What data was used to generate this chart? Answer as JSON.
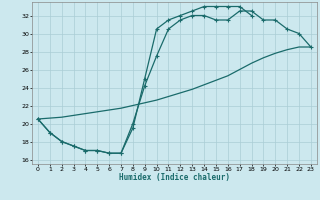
{
  "xlabel": "Humidex (Indice chaleur)",
  "background_color": "#cce8ee",
  "grid_color": "#aacdd5",
  "line_color": "#1a6b6b",
  "xlim": [
    -0.5,
    23.5
  ],
  "ylim": [
    15.5,
    33.5
  ],
  "xticks": [
    0,
    1,
    2,
    3,
    4,
    5,
    6,
    7,
    8,
    9,
    10,
    11,
    12,
    13,
    14,
    15,
    16,
    17,
    18,
    19,
    20,
    21,
    22,
    23
  ],
  "yticks": [
    16,
    18,
    20,
    22,
    24,
    26,
    28,
    30,
    32
  ],
  "line1_x": [
    0,
    1,
    2,
    3,
    4,
    5,
    6,
    7,
    8,
    9,
    10,
    11,
    12,
    13,
    14,
    15,
    16,
    17,
    18
  ],
  "line1_y": [
    20.5,
    19.0,
    18.0,
    17.5,
    17.0,
    17.0,
    16.7,
    16.7,
    19.5,
    25.0,
    30.5,
    31.5,
    32.0,
    32.5,
    33.0,
    33.0,
    33.0,
    33.0,
    32.0
  ],
  "line2_x": [
    0,
    1,
    2,
    3,
    4,
    5,
    6,
    7,
    8,
    9,
    10,
    11,
    12,
    13,
    14,
    15,
    16,
    17,
    18,
    19,
    20,
    21,
    22,
    23
  ],
  "line2_y": [
    20.5,
    19.0,
    18.0,
    17.5,
    17.0,
    17.0,
    16.7,
    16.7,
    20.0,
    24.2,
    27.5,
    30.5,
    31.5,
    32.0,
    32.0,
    31.5,
    31.5,
    32.5,
    32.5,
    31.5,
    31.5,
    30.5,
    30.0,
    28.5
  ],
  "line3_x": [
    0,
    1,
    2,
    3,
    4,
    5,
    6,
    7,
    8,
    9,
    10,
    11,
    12,
    13,
    14,
    15,
    16,
    17,
    18,
    19,
    20,
    21,
    22,
    23
  ],
  "line3_y": [
    20.5,
    20.6,
    20.7,
    20.9,
    21.1,
    21.3,
    21.5,
    21.7,
    22.0,
    22.3,
    22.6,
    23.0,
    23.4,
    23.8,
    24.3,
    24.8,
    25.3,
    26.0,
    26.7,
    27.3,
    27.8,
    28.2,
    28.5,
    28.5
  ]
}
